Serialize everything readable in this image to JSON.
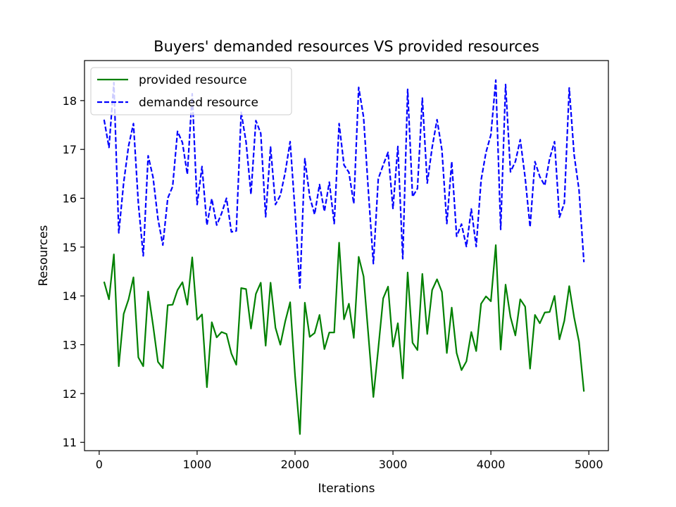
{
  "chart_data": {
    "type": "line",
    "title": "Buyers' demanded resources VS provided resources",
    "xlabel": "Iterations",
    "ylabel": "Resources",
    "xlim": [
      -150,
      5200
    ],
    "ylim": [
      10.83,
      18.82
    ],
    "xticks": [
      0,
      1000,
      2000,
      3000,
      4000,
      5000
    ],
    "yticks": [
      11,
      12,
      13,
      14,
      15,
      16,
      17,
      18
    ],
    "grid": false,
    "legend_position": "top-left",
    "x": [
      50,
      100,
      150,
      200,
      250,
      300,
      350,
      400,
      450,
      500,
      550,
      600,
      650,
      700,
      750,
      800,
      850,
      900,
      950,
      1000,
      1050,
      1100,
      1150,
      1200,
      1250,
      1300,
      1350,
      1400,
      1450,
      1500,
      1550,
      1600,
      1650,
      1700,
      1750,
      1800,
      1850,
      1900,
      1950,
      2000,
      2050,
      2100,
      2150,
      2200,
      2250,
      2300,
      2350,
      2400,
      2450,
      2500,
      2550,
      2600,
      2650,
      2700,
      2750,
      2800,
      2850,
      2900,
      2950,
      3000,
      3050,
      3100,
      3150,
      3200,
      3250,
      3300,
      3350,
      3400,
      3450,
      3500,
      3550,
      3600,
      3650,
      3700,
      3750,
      3800,
      3850,
      3900,
      3950,
      4000,
      4050,
      4100,
      4150,
      4200,
      4250,
      4300,
      4350,
      4400,
      4450,
      4500,
      4550,
      4600,
      4650,
      4700,
      4750,
      4800,
      4850,
      4900,
      4950
    ],
    "series": [
      {
        "name": "provided resource",
        "color": "#008000",
        "style": "solid",
        "values": [
          14.29,
          13.93,
          14.85,
          12.56,
          13.63,
          13.93,
          14.38,
          12.74,
          12.56,
          14.09,
          13.4,
          12.65,
          12.52,
          13.81,
          13.82,
          14.12,
          14.28,
          13.82,
          14.79,
          13.51,
          13.62,
          12.13,
          13.46,
          13.15,
          13.26,
          13.22,
          12.82,
          12.59,
          14.16,
          14.14,
          13.33,
          14.04,
          14.27,
          12.98,
          14.27,
          13.35,
          13.0,
          13.48,
          13.87,
          12.37,
          11.17,
          13.86,
          13.16,
          13.24,
          13.61,
          12.91,
          13.25,
          13.25,
          15.09,
          13.52,
          13.84,
          13.14,
          14.8,
          14.4,
          13.17,
          11.93,
          12.92,
          13.95,
          14.19,
          12.96,
          13.44,
          12.31,
          14.48,
          13.04,
          12.89,
          14.45,
          13.22,
          14.12,
          14.34,
          14.08,
          12.83,
          13.76,
          12.83,
          12.48,
          12.66,
          13.26,
          12.87,
          13.84,
          13.99,
          13.89,
          15.04,
          12.9,
          14.23,
          13.57,
          13.19,
          13.93,
          13.78,
          12.51,
          13.61,
          13.44,
          13.66,
          13.67,
          14.0,
          13.11,
          13.49,
          14.2,
          13.56,
          13.06,
          12.04
        ]
      },
      {
        "name": "demanded resource",
        "color": "#0000ff",
        "style": "dashed",
        "values": [
          17.61,
          17.04,
          18.37,
          15.29,
          16.32,
          17.07,
          17.53,
          15.89,
          14.82,
          16.87,
          16.43,
          15.58,
          15.04,
          16.0,
          16.24,
          17.37,
          17.14,
          16.49,
          18.14,
          15.87,
          16.65,
          15.45,
          15.99,
          15.45,
          15.69,
          16.0,
          15.31,
          15.33,
          17.76,
          17.15,
          16.08,
          17.59,
          17.33,
          15.62,
          17.05,
          15.87,
          16.06,
          16.53,
          17.16,
          15.73,
          14.16,
          16.81,
          16.03,
          15.67,
          16.28,
          15.73,
          16.33,
          15.48,
          17.53,
          16.68,
          16.53,
          15.89,
          18.27,
          17.66,
          16.11,
          14.66,
          16.4,
          16.68,
          16.94,
          15.79,
          17.06,
          14.76,
          18.23,
          16.03,
          16.2,
          18.05,
          16.31,
          17.04,
          17.61,
          16.99,
          15.48,
          16.75,
          15.22,
          15.47,
          15.01,
          15.78,
          15.01,
          16.37,
          16.94,
          17.3,
          18.42,
          15.36,
          18.33,
          16.54,
          16.75,
          17.2,
          16.42,
          15.41,
          16.75,
          16.44,
          16.26,
          16.81,
          17.16,
          15.61,
          15.9,
          18.26,
          16.89,
          16.17,
          14.69
        ]
      }
    ]
  }
}
